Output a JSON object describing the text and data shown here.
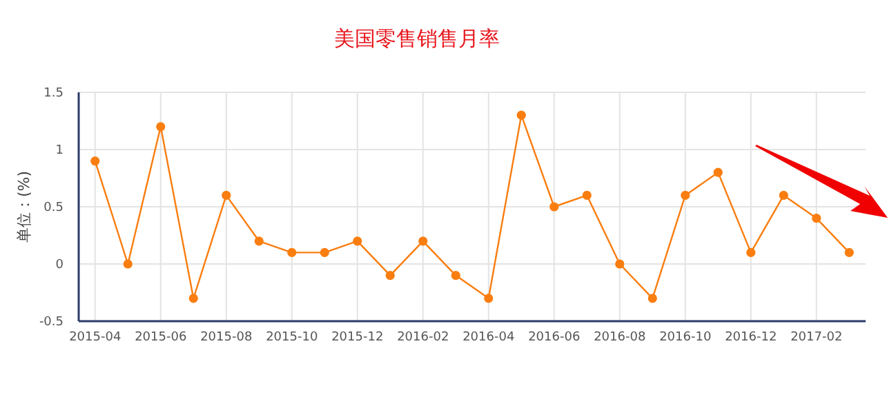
{
  "chart_data": {
    "type": "line",
    "title": "美国零售销售月率",
    "ylabel": "单位：(%)",
    "categories": [
      "2015-04",
      null,
      "2015-06",
      null,
      "2015-08",
      null,
      "2015-10",
      null,
      "2015-12",
      null,
      "2016-02",
      null,
      "2016-04",
      null,
      "2016-06",
      null,
      "2016-08",
      null,
      "2016-10",
      null,
      "2016-12",
      null,
      "2017-02",
      null
    ],
    "series": [
      {
        "color": "#fa7d0f",
        "values": [
          0.9,
          0,
          1.2,
          -0.3,
          0.6,
          0.2,
          0.1,
          0.1,
          0.2,
          -0.1,
          0.2,
          -0.1,
          -0.3,
          1.3,
          0.5,
          0.6,
          0,
          -0.3,
          0.6,
          0.8,
          0.1,
          0.6,
          0.4,
          0.1
        ]
      }
    ],
    "ylim": [
      -0.5,
      1.5
    ],
    "yticks": [
      {
        "value": -0.5,
        "label": "-0.5"
      },
      0,
      0.5,
      1,
      1.5
    ],
    "grid": true,
    "marker": "circle",
    "line_style": "solid"
  }
}
